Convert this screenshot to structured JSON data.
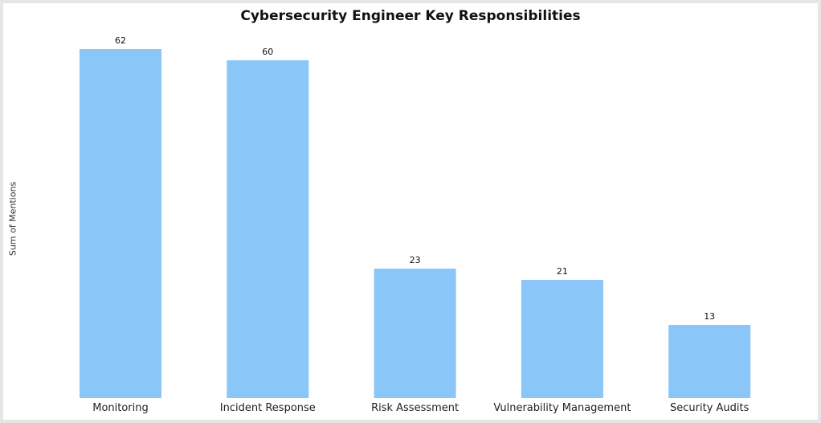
{
  "chart_data": {
    "type": "bar",
    "title": "Cybersecurity Engineer Key Responsibilities",
    "ylabel": "Sum of Mentions",
    "xlabel": "",
    "categories": [
      "Monitoring",
      "Incident Response",
      "Risk Assessment",
      "Vulnerability Management",
      "Security Audits"
    ],
    "values": [
      62,
      60,
      23,
      21,
      13
    ],
    "ylim": [
      0,
      62
    ],
    "grid": false,
    "bar_color": "#8ac6f7"
  }
}
